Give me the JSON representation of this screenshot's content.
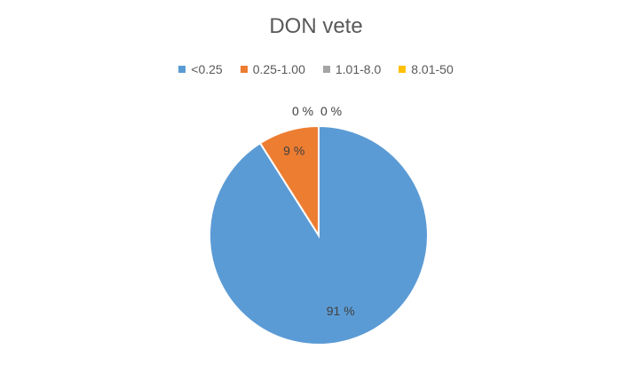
{
  "chart_data": {
    "type": "pie",
    "title": "DON vete",
    "legend_position": "top",
    "categories": [
      "<0.25",
      "0.25-1.00",
      "1.01-8.0",
      "8.01-50"
    ],
    "values": [
      91,
      9,
      0,
      0
    ],
    "data_labels": [
      "91 %",
      "9 %",
      "0 %",
      "0 %"
    ],
    "colors": [
      "#5B9BD5",
      "#ED7D31",
      "#A5A5A5",
      "#FFC000"
    ]
  }
}
